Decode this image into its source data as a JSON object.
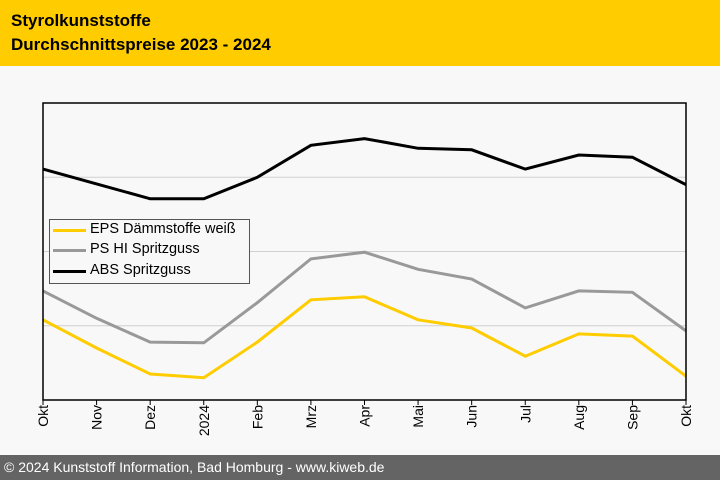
{
  "header": {
    "title_line1": "Styrolkunststoffe",
    "title_line2": "Durchschnittspreise 2023 - 2024"
  },
  "footer": {
    "copyright": "© 2024 Kunststoff Information, Bad Homburg - www.kiweb.de"
  },
  "colors": {
    "header_bg": "#ffcc00",
    "footer_bg": "#646464",
    "eps": "#ffcc00",
    "ps_hi": "#999999",
    "abs": "#000000"
  },
  "chart_data": {
    "type": "line",
    "title": "Styrolkunststoffe Durchschnittspreise 2023 - 2024",
    "xlabel": "",
    "ylabel": "",
    "y_axis_note": "no y tick labels shown; values are relative units where horizontal gridlines are at 1, 2, 3",
    "ylim": [
      0,
      4
    ],
    "grid": true,
    "legend_position": "center-left",
    "categories": [
      "Okt",
      "Nov",
      "Dez",
      "2024",
      "Feb",
      "Mrz",
      "Apr",
      "Mai",
      "Jun",
      "Jul",
      "Aug",
      "Sep",
      "Okt"
    ],
    "series": [
      {
        "name": "EPS Dämmstoffe weiß",
        "color": "#ffcc00",
        "values": [
          1.08,
          0.7,
          0.35,
          0.3,
          0.78,
          1.35,
          1.39,
          1.08,
          0.97,
          0.59,
          0.89,
          0.86,
          0.32
        ]
      },
      {
        "name": "PS HI Spritzguss",
        "color": "#999999",
        "values": [
          1.47,
          1.1,
          0.78,
          0.77,
          1.31,
          1.9,
          1.99,
          1.76,
          1.63,
          1.24,
          1.47,
          1.45,
          0.93
        ]
      },
      {
        "name": "ABS Spritzguss",
        "color": "#000000",
        "values": [
          3.11,
          2.91,
          2.71,
          2.71,
          3.0,
          3.43,
          3.52,
          3.39,
          3.37,
          3.11,
          3.3,
          3.27,
          2.9
        ]
      }
    ]
  }
}
